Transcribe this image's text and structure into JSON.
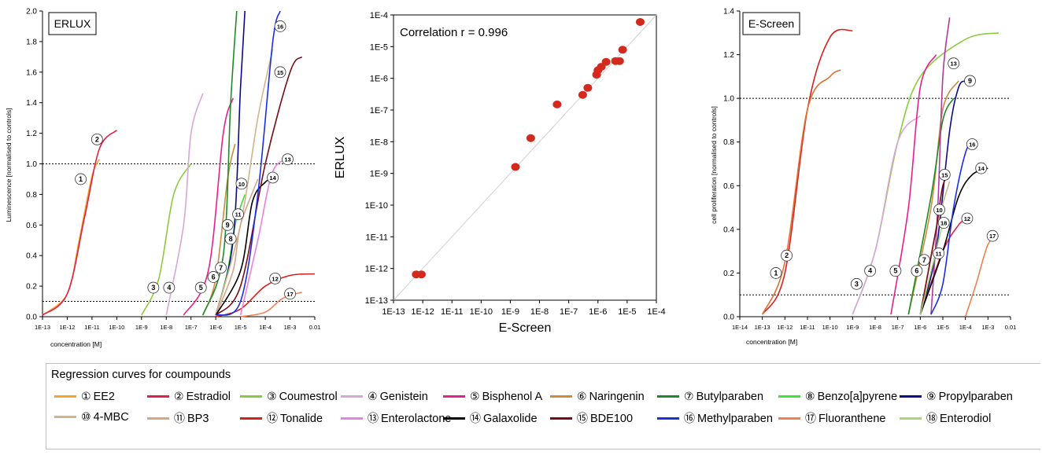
{
  "compounds": [
    {
      "num": "1",
      "name": "EE2",
      "color": "#f5a623"
    },
    {
      "num": "2",
      "name": "Estradiol",
      "color": "#e0204a"
    },
    {
      "num": "3",
      "name": "Coumestrol",
      "color": "#8ccb3c"
    },
    {
      "num": "4",
      "name": "Genistein",
      "color": "#d9a6d9"
    },
    {
      "num": "5",
      "name": "Bisphenol A",
      "color": "#e8208a"
    },
    {
      "num": "6",
      "name": "Naringenin",
      "color": "#cf8a3a"
    },
    {
      "num": "7",
      "name": "Butylparaben",
      "color": "#1f8a2a"
    },
    {
      "num": "8",
      "name": "Benzo[a]pyrene",
      "color": "#39e639"
    },
    {
      "num": "9",
      "name": "Propylparaben",
      "color": "#0a0a8a"
    },
    {
      "num": "10",
      "name": "4-MBC",
      "color": "#d2b48c"
    },
    {
      "num": "11",
      "name": "BP3",
      "color": "#d4a78a"
    },
    {
      "num": "12",
      "name": "Tonalide",
      "color": "#d92020"
    },
    {
      "num": "13",
      "name": "Enterolactone",
      "color": "#ee7fe0"
    },
    {
      "num": "14",
      "name": "Galaxolide",
      "color": "#000000"
    },
    {
      "num": "15",
      "name": "BDE100",
      "color": "#7a0a14"
    },
    {
      "num": "16",
      "name": "Methylparaben",
      "color": "#1a2fe0"
    },
    {
      "num": "17",
      "name": "Fluoranthene",
      "color": "#f08050"
    },
    {
      "num": "18",
      "name": "Enterodiol",
      "color": "#a8d878"
    }
  ],
  "legend": {
    "title": "Regression curves for coumpounds"
  },
  "chart_data": [
    {
      "type": "line",
      "title": "ERLUX",
      "xlabel": "concentration [M]",
      "ylabel": "Luminescence [normalised to controls]",
      "xscale": "log",
      "xlim": [
        1e-13,
        0.01
      ],
      "ylim": [
        0,
        2.0
      ],
      "x_ticks": [
        "1E-13",
        "1E-12",
        "1E-11",
        "1E-10",
        "1E-9",
        "1E-8",
        "1E-7",
        "1E-6",
        "1E-5",
        "1E-4",
        "1E-3",
        "0.01"
      ],
      "y_ticks": [
        "0.0",
        "0.2",
        "0.4",
        "0.6",
        "0.8",
        "1.0",
        "1.2",
        "1.4",
        "1.6",
        "1.8",
        "2.0"
      ],
      "reference_lines": [
        1.0,
        0.1
      ],
      "series": [
        {
          "label": "1",
          "color": "#f5a623",
          "x": [
            1e-13,
            1e-12,
            3e-12,
            1e-11,
            2e-11
          ],
          "y": [
            0.01,
            0.15,
            0.5,
            0.92,
            1.03
          ]
        },
        {
          "label": "2",
          "color": "#e0204a",
          "x": [
            1e-13,
            1e-12,
            5e-12,
            2e-11,
            1e-10
          ],
          "y": [
            0.01,
            0.15,
            0.65,
            1.1,
            1.22
          ]
        },
        {
          "label": "3",
          "color": "#8ccb3c",
          "x": [
            1e-09,
            5e-09,
            2e-08,
            1e-07
          ],
          "y": [
            0.01,
            0.25,
            0.8,
            1.0
          ]
        },
        {
          "label": "4",
          "color": "#d9a6d9",
          "x": [
            1e-08,
            5e-08,
            1e-07,
            3e-07
          ],
          "y": [
            0.01,
            0.6,
            1.2,
            1.46
          ]
        },
        {
          "label": "5",
          "color": "#e8208a",
          "x": [
            5e-08,
            5e-07,
            2e-06,
            5e-06
          ],
          "y": [
            0.01,
            0.3,
            1.2,
            1.43
          ]
        },
        {
          "label": "6",
          "color": "#cf8a3a",
          "x": [
            3e-07,
            1e-06,
            3e-06,
            6e-06
          ],
          "y": [
            0.01,
            0.25,
            0.9,
            1.13
          ]
        },
        {
          "label": "7",
          "color": "#1f8a2a",
          "x": [
            3e-07,
            2e-06,
            4e-06,
            7e-06
          ],
          "y": [
            0.01,
            0.4,
            1.4,
            2.0
          ]
        },
        {
          "label": "8",
          "color": "#39e639",
          "x": [
            1e-06,
            3e-06,
            6e-06,
            1.5e-05
          ],
          "y": [
            0.01,
            0.3,
            0.6,
            0.8
          ]
        },
        {
          "label": "9",
          "color": "#0a0a8a",
          "x": [
            1e-06,
            5e-06,
            1e-05,
            1.5e-05
          ],
          "y": [
            0.01,
            0.5,
            1.5,
            2.0
          ]
        },
        {
          "label": "10",
          "color": "#d2b48c",
          "x": [
            1e-06,
            1e-05,
            5e-05,
            0.0002
          ],
          "y": [
            0.01,
            0.6,
            1.3,
            1.75
          ]
        },
        {
          "label": "11",
          "color": "#d4a78a",
          "x": [
            1e-06,
            5e-06,
            1e-05,
            5e-05
          ],
          "y": [
            0.01,
            0.3,
            0.6,
            0.9
          ]
        },
        {
          "label": "12",
          "color": "#d92020",
          "x": [
            1e-06,
            1e-05,
            0.0001,
            0.001,
            0.01
          ],
          "y": [
            0.0,
            0.05,
            0.2,
            0.27,
            0.28
          ]
        },
        {
          "label": "13",
          "color": "#ee7fe0",
          "x": [
            1e-05,
            5e-05,
            0.0002,
            0.001
          ],
          "y": [
            0.01,
            0.5,
            0.95,
            1.03
          ]
        },
        {
          "label": "14",
          "color": "#000000",
          "x": [
            1e-06,
            1e-05,
            3e-05,
            0.0001,
            0.0002
          ],
          "y": [
            0.01,
            0.3,
            0.75,
            0.88,
            0.9
          ]
        },
        {
          "label": "15",
          "color": "#7a0a14",
          "x": [
            1e-06,
            1e-05,
            0.0001,
            0.001,
            0.003
          ],
          "y": [
            0.01,
            0.2,
            1.0,
            1.6,
            1.7
          ]
        },
        {
          "label": "16",
          "color": "#1a2fe0",
          "x": [
            1e-06,
            1e-05,
            5e-05,
            0.0002,
            0.0004
          ],
          "y": [
            0.01,
            0.1,
            0.8,
            1.8,
            2.0
          ]
        },
        {
          "label": "17",
          "color": "#f08050",
          "x": [
            1e-05,
            0.0001,
            0.0005,
            0.003
          ],
          "y": [
            0.0,
            0.03,
            0.12,
            0.16
          ]
        }
      ],
      "label_points": [
        {
          "label": "1",
          "x": 3.5e-12,
          "y": 0.9
        },
        {
          "label": "2",
          "x": 1.6e-11,
          "y": 1.16
        },
        {
          "label": "3",
          "x": 3e-09,
          "y": 0.19
        },
        {
          "label": "4",
          "x": 1.3e-08,
          "y": 0.19
        },
        {
          "label": "5",
          "x": 2.5e-07,
          "y": 0.19
        },
        {
          "label": "6",
          "x": 8e-07,
          "y": 0.26
        },
        {
          "label": "7",
          "x": 1.6e-06,
          "y": 0.32
        },
        {
          "label": "8",
          "x": 4e-06,
          "y": 0.51
        },
        {
          "label": "9",
          "x": 3e-06,
          "y": 0.6
        },
        {
          "label": "10",
          "x": 1.1e-05,
          "y": 0.87
        },
        {
          "label": "11",
          "x": 8e-06,
          "y": 0.67
        },
        {
          "label": "12",
          "x": 0.00025,
          "y": 0.25
        },
        {
          "label": "13",
          "x": 0.0008,
          "y": 1.03
        },
        {
          "label": "14",
          "x": 0.0002,
          "y": 0.91
        },
        {
          "label": "15",
          "x": 0.0004,
          "y": 1.6
        },
        {
          "label": "16",
          "x": 0.0004,
          "y": 1.9
        },
        {
          "label": "17",
          "x": 0.001,
          "y": 0.15
        }
      ]
    },
    {
      "type": "scatter",
      "title": "",
      "annotation": "Correlation r = 0.996",
      "xlabel": "E-Screen",
      "ylabel": "ERLUX",
      "xscale": "log",
      "yscale": "log",
      "xlim": [
        1e-13,
        0.0001
      ],
      "ylim": [
        1e-13,
        0.0001
      ],
      "x_ticks": [
        "1E-13",
        "1E-12",
        "1E-11",
        "1E-10",
        "1E-9",
        "1E-8",
        "1E-7",
        "1E-6",
        "1E-5",
        "1E-4"
      ],
      "y_ticks": [
        "1E-13",
        "1E-12",
        "1E-11",
        "1E-10",
        "1E-9",
        "1E-8",
        "1E-7",
        "1E-6",
        "1E-5",
        "1E-4"
      ],
      "points": [
        {
          "x": 6e-13,
          "y": 6.5e-13
        },
        {
          "x": 9e-13,
          "y": 6.5e-13
        },
        {
          "x": 1.5e-09,
          "y": 1.6e-09
        },
        {
          "x": 5e-09,
          "y": 1.3e-08
        },
        {
          "x": 4e-08,
          "y": 1.5e-07
        },
        {
          "x": 3e-07,
          "y": 3e-07
        },
        {
          "x": 4.5e-07,
          "y": 5e-07
        },
        {
          "x": 9e-07,
          "y": 1.3e-06
        },
        {
          "x": 1e-06,
          "y": 1.8e-06
        },
        {
          "x": 1.3e-06,
          "y": 2.3e-06
        },
        {
          "x": 1.9e-06,
          "y": 3.3e-06
        },
        {
          "x": 4e-06,
          "y": 3.5e-06
        },
        {
          "x": 5.5e-06,
          "y": 3.5e-06
        },
        {
          "x": 7e-06,
          "y": 8e-06
        },
        {
          "x": 2.8e-05,
          "y": 6e-05
        }
      ],
      "diagonal": true
    },
    {
      "type": "line",
      "title": "E-Screen",
      "xlabel": "concentration [M]",
      "ylabel": "cell proliferation [normalised to controls]",
      "xscale": "log",
      "xlim": [
        1e-14,
        0.01
      ],
      "ylim": [
        0,
        1.4
      ],
      "x_ticks": [
        "1E-14",
        "1E-13",
        "1E-12",
        "1E-11",
        "1E-10",
        "1E-9",
        "1E-8",
        "1E-7",
        "1E-6",
        "1E-5",
        "1E-4",
        "1E-3",
        "0.01"
      ],
      "y_ticks": [
        "0.0",
        "0.2",
        "0.4",
        "0.6",
        "0.8",
        "1.0",
        "1.2",
        "1.4"
      ],
      "reference_lines": [
        1.0,
        0.1
      ],
      "series": [
        {
          "label": "1",
          "color": "#d92020",
          "x": [
            1e-13,
            1e-12,
            1e-11,
            1e-10,
            1e-09
          ],
          "y": [
            0.01,
            0.2,
            0.95,
            1.28,
            1.31
          ]
        },
        {
          "label": "2",
          "color": "#e07030",
          "x": [
            1e-13,
            1e-12,
            1e-11,
            1e-10,
            3e-10
          ],
          "y": [
            0.01,
            0.25,
            0.95,
            1.1,
            1.13
          ]
        },
        {
          "label": "3",
          "color": "#8ccb3c",
          "x": [
            1e-09,
            1e-08,
            1e-07,
            1e-06,
            0.0001,
            0.003
          ],
          "y": [
            0.01,
            0.3,
            0.8,
            1.1,
            1.27,
            1.3
          ]
        },
        {
          "label": "4",
          "color": "#d9a6d9",
          "x": [
            1e-09,
            1e-08,
            1e-07,
            1e-06
          ],
          "y": [
            0.01,
            0.3,
            0.8,
            0.92
          ]
        },
        {
          "label": "5",
          "color": "#e8208a",
          "x": [
            5e-08,
            3e-07,
            1e-06,
            5e-06
          ],
          "y": [
            0.01,
            0.5,
            1.05,
            1.2
          ]
        },
        {
          "label": "6",
          "color": "#cf8a3a",
          "x": [
            3e-07,
            3e-06,
            1e-05,
            5e-05
          ],
          "y": [
            0.01,
            0.5,
            0.95,
            1.08
          ]
        },
        {
          "label": "7",
          "color": "#1f8a2a",
          "x": [
            3e-07,
            3e-06,
            1e-05,
            3e-05
          ],
          "y": [
            0.01,
            0.55,
            0.9,
            1.0
          ]
        },
        {
          "label": "9",
          "color": "#0a0a8a",
          "x": [
            1e-06,
            5e-06,
            2e-05,
            5e-05,
            0.0001
          ],
          "y": [
            0.01,
            0.3,
            0.85,
            1.05,
            1.08
          ]
        },
        {
          "label": "10",
          "color": "#d2b48c",
          "x": [
            1e-06,
            5e-06,
            2e-05
          ],
          "y": [
            0.01,
            0.4,
            0.62
          ]
        },
        {
          "label": "12",
          "color": "#e0204a",
          "x": [
            1e-06,
            1e-05,
            5e-05,
            0.0001
          ],
          "y": [
            0.01,
            0.3,
            0.42,
            0.44
          ]
        },
        {
          "label": "13",
          "color": "#b03aa0",
          "x": [
            3e-06,
            6e-06,
            1e-05,
            2e-05
          ],
          "y": [
            0.01,
            0.5,
            1.1,
            1.37
          ]
        },
        {
          "label": "14",
          "color": "#000000",
          "x": [
            1e-06,
            1e-05,
            5e-05,
            0.0002,
            0.001
          ],
          "y": [
            0.01,
            0.3,
            0.55,
            0.65,
            0.68
          ]
        },
        {
          "label": "15",
          "color": "#7a0a14",
          "x": [
            1e-06,
            5e-06,
            1e-05,
            2e-05
          ],
          "y": [
            0.01,
            0.4,
            0.6,
            0.65
          ]
        },
        {
          "label": "16",
          "color": "#1a2fe0",
          "x": [
            3e-06,
            1e-05,
            3e-05,
            0.0001,
            0.0002
          ],
          "y": [
            0.01,
            0.15,
            0.5,
            0.75,
            0.79
          ]
        },
        {
          "label": "17",
          "color": "#f08050",
          "x": [
            0.0001,
            0.0003,
            0.001,
            0.003
          ],
          "y": [
            0.0,
            0.15,
            0.33,
            0.37
          ]
        },
        {
          "label": "18",
          "color": "#a8d878",
          "x": [
            1e-06,
            5e-06,
            1e-05,
            2e-05
          ],
          "y": [
            0.01,
            0.3,
            0.42,
            0.44
          ]
        }
      ],
      "label_points": [
        {
          "label": "1",
          "x": 4e-13,
          "y": 0.2
        },
        {
          "label": "2",
          "x": 1.2e-12,
          "y": 0.28
        },
        {
          "label": "3",
          "x": 1.5e-09,
          "y": 0.15
        },
        {
          "label": "4",
          "x": 6e-09,
          "y": 0.21
        },
        {
          "label": "5",
          "x": 8e-08,
          "y": 0.21
        },
        {
          "label": "6",
          "x": 7e-07,
          "y": 0.21
        },
        {
          "label": "7",
          "x": 1.5e-06,
          "y": 0.26
        },
        {
          "label": "9",
          "x": 0.00016,
          "y": 1.08
        },
        {
          "label": "10",
          "x": 7e-06,
          "y": 0.49
        },
        {
          "label": "11",
          "x": 6.5e-06,
          "y": 0.29
        },
        {
          "label": "12",
          "x": 0.00012,
          "y": 0.45
        },
        {
          "label": "13",
          "x": 3e-05,
          "y": 1.16
        },
        {
          "label": "14",
          "x": 0.0005,
          "y": 0.68
        },
        {
          "label": "15",
          "x": 1.2e-05,
          "y": 0.65
        },
        {
          "label": "16",
          "x": 0.0002,
          "y": 0.79
        },
        {
          "label": "17",
          "x": 0.0016,
          "y": 0.37
        },
        {
          "label": "18",
          "x": 1.1e-05,
          "y": 0.43
        }
      ]
    }
  ]
}
